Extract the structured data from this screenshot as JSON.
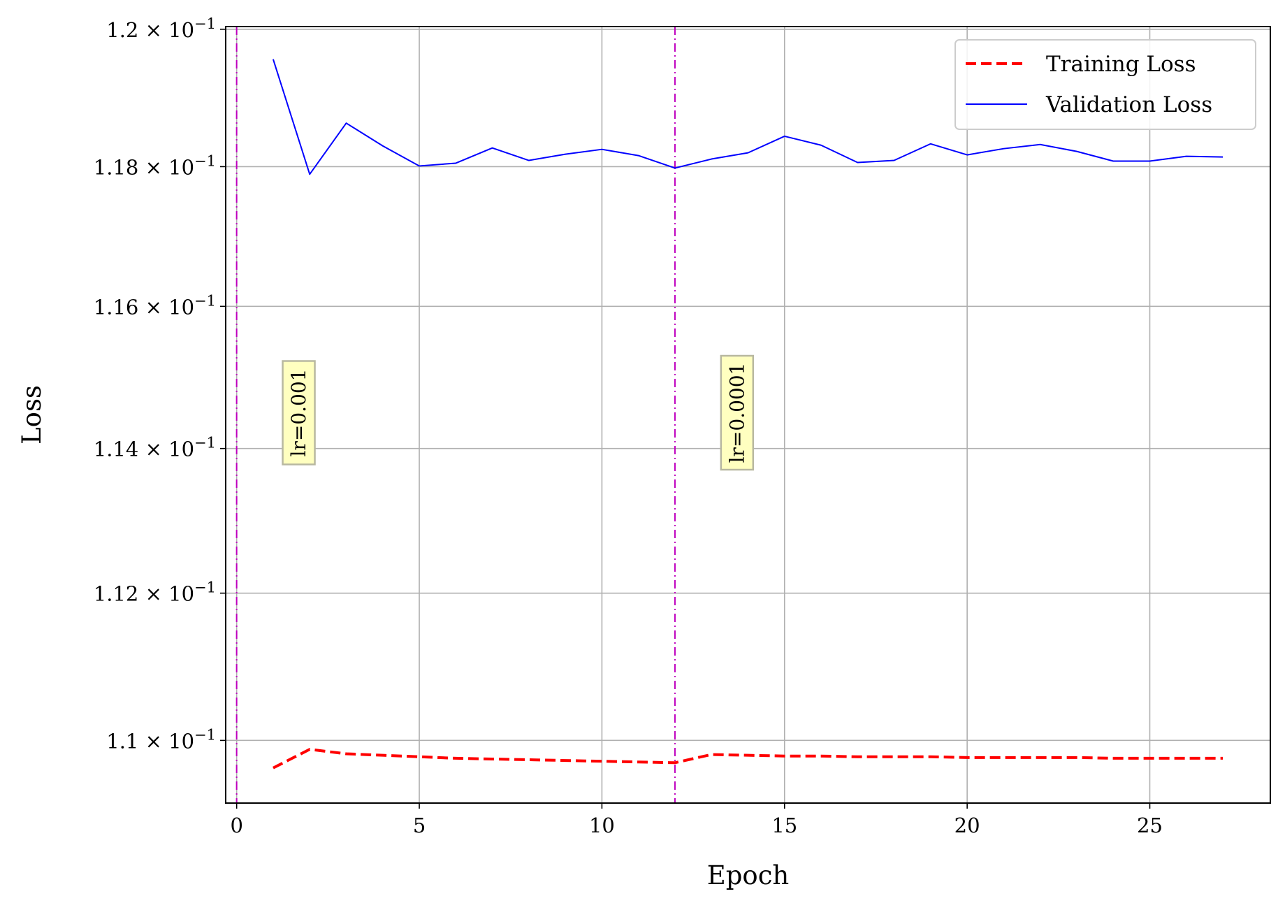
{
  "chart_data": {
    "type": "line",
    "xlabel": "Epoch",
    "ylabel": "Loss",
    "xlim": [
      -0.3,
      28.3
    ],
    "ylim": [
      0.10916,
      0.12004
    ],
    "yscale": "log",
    "grid": true,
    "legend_position": "top-right",
    "x_ticks": [
      0,
      5,
      10,
      15,
      20,
      25
    ],
    "x_tick_labels": [
      "0",
      "5",
      "10",
      "15",
      "20",
      "25"
    ],
    "y_ticks": [
      0.11,
      0.112,
      0.114,
      0.116,
      0.118,
      0.12
    ],
    "y_tick_labels": [
      {
        "mantissa": "1.1",
        "exp": "−1"
      },
      {
        "mantissa": "1.12",
        "exp": "−1"
      },
      {
        "mantissa": "1.14",
        "exp": "−1"
      },
      {
        "mantissa": "1.16",
        "exp": "−1"
      },
      {
        "mantissa": "1.18",
        "exp": "−1"
      },
      {
        "mantissa": "1.2",
        "exp": "−1"
      }
    ],
    "times_symbol": "×",
    "base": "10",
    "x": [
      1,
      2,
      3,
      4,
      5,
      6,
      7,
      8,
      9,
      10,
      11,
      12,
      13,
      14,
      15,
      16,
      17,
      18,
      19,
      20,
      21,
      22,
      23,
      24,
      25,
      26,
      27
    ],
    "series": [
      {
        "name": "Training Loss",
        "color": "#ff0000",
        "style": "dashed",
        "values": [
          0.10963,
          0.10988,
          0.10982,
          0.1098,
          0.10978,
          0.10976,
          0.10975,
          0.10974,
          0.10973,
          0.10972,
          0.10971,
          0.1097,
          0.10981,
          0.1098,
          0.10979,
          0.10979,
          0.10978,
          0.10978,
          0.10978,
          0.10977,
          0.10977,
          0.10977,
          0.10977,
          0.10976,
          0.10976,
          0.10976,
          0.10976
        ]
      },
      {
        "name": "Validation Loss",
        "color": "#0000ff",
        "style": "solid",
        "values": [
          0.11956,
          0.11789,
          0.11863,
          0.1183,
          0.11801,
          0.11805,
          0.11827,
          0.11809,
          0.11818,
          0.11825,
          0.11816,
          0.11798,
          0.11811,
          0.1182,
          0.11844,
          0.11831,
          0.11806,
          0.11809,
          0.11833,
          0.11817,
          0.11826,
          0.11832,
          0.11822,
          0.11808,
          0.11808,
          0.11815,
          0.11814
        ]
      }
    ],
    "vertical_lines": [
      {
        "x": 0,
        "color": "#bf00bf",
        "style": "dashdot"
      },
      {
        "x": 12,
        "color": "#bf00bf",
        "style": "dashdot"
      }
    ],
    "annotations": [
      {
        "text": "lr=0.001",
        "x": 1.7,
        "y": 0.1145,
        "rotation": 90,
        "box_color": "#ffffc0"
      },
      {
        "text": "lr=0.0001",
        "x": 13.7,
        "y": 0.1145,
        "rotation": 90,
        "box_color": "#ffffc0"
      }
    ]
  }
}
